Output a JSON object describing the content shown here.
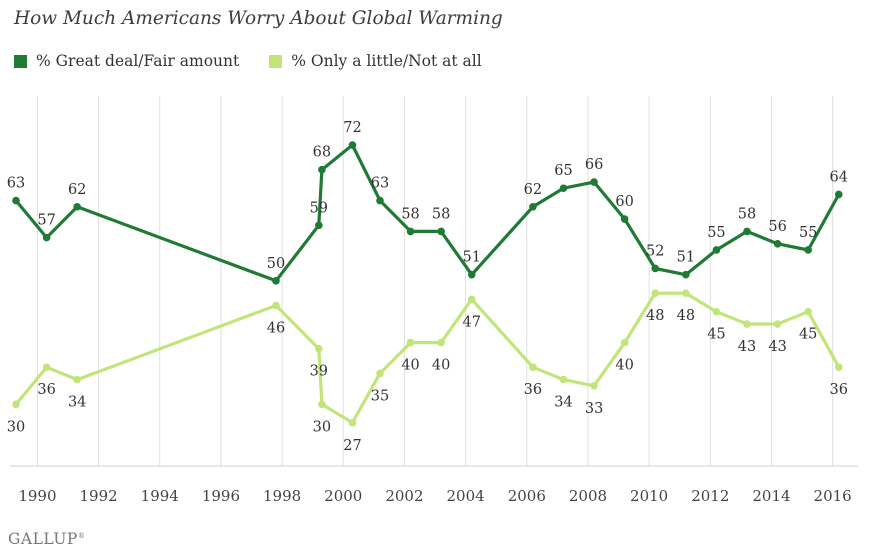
{
  "header": {
    "title": "How Much Americans Worry About Global Warming"
  },
  "brand": {
    "name": "GALLUP",
    "mark": "®"
  },
  "colors": {
    "great_deal": "#1f7a34",
    "only_little": "#c2e57a",
    "grid": "#e0e0e0",
    "text": "#333333"
  },
  "chart_data": {
    "type": "line",
    "title": "How Much Americans Worry About Global Warming",
    "xlabel": "",
    "ylabel": "",
    "x_ticks": [
      "1990",
      "1992",
      "1994",
      "1996",
      "1998",
      "2000",
      "2002",
      "2004",
      "2006",
      "2008",
      "2010",
      "2012",
      "2014",
      "2016"
    ],
    "xlim": [
      1989.3,
      2016.6
    ],
    "ylim": [
      20,
      78
    ],
    "grid": "vertical",
    "legend_placement": "top-left",
    "x": [
      1989.3,
      1990.3,
      1991.3,
      1997.8,
      1999.2,
      1999.3,
      2000.3,
      2001.2,
      2002.2,
      2003.2,
      2004.2,
      2006.2,
      2007.2,
      2008.2,
      2009.2,
      2010.2,
      2011.2,
      2012.2,
      2013.2,
      2014.2,
      2015.2,
      2016.2
    ],
    "series": [
      {
        "name": "% Great deal/Fair amount",
        "color": "#1f7a34",
        "values": [
          63,
          57,
          62,
          50,
          59,
          68,
          72,
          63,
          58,
          58,
          51,
          62,
          65,
          66,
          60,
          52,
          51,
          55,
          58,
          56,
          55,
          64
        ]
      },
      {
        "name": "% Only a little/Not at all",
        "color": "#c2e57a",
        "values": [
          30,
          36,
          34,
          46,
          39,
          30,
          27,
          35,
          40,
          40,
          47,
          36,
          34,
          33,
          40,
          48,
          48,
          45,
          43,
          43,
          45,
          36
        ]
      }
    ]
  }
}
